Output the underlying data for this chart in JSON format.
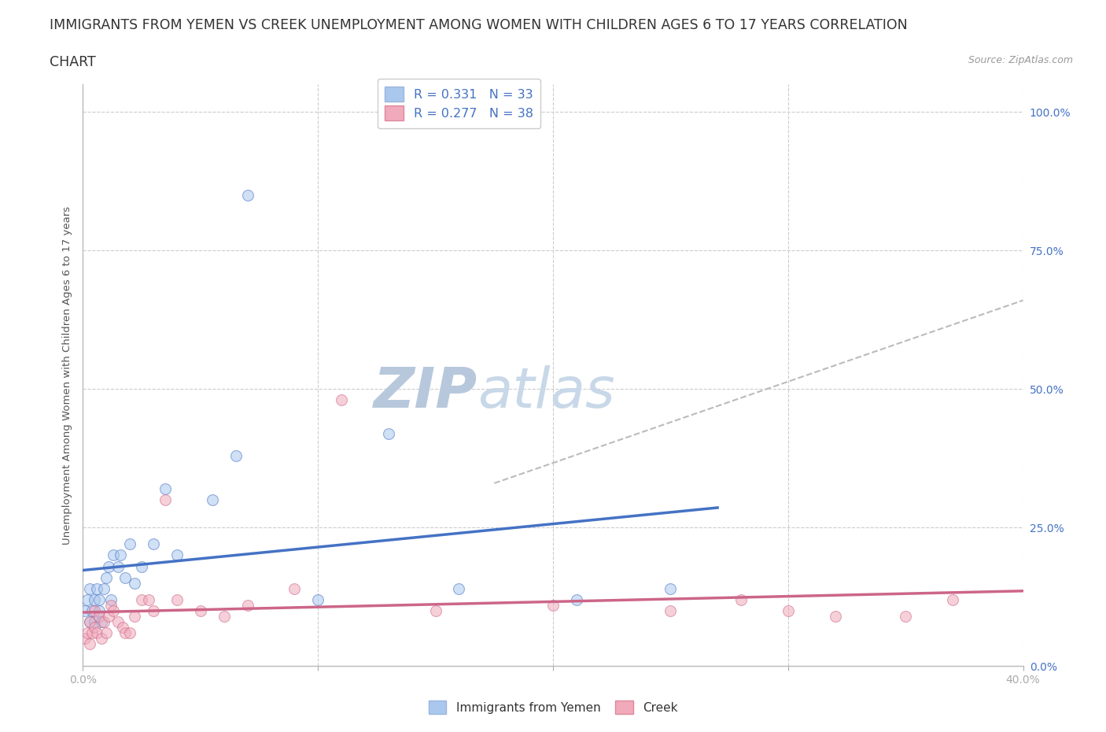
{
  "title_line1": "IMMIGRANTS FROM YEMEN VS CREEK UNEMPLOYMENT AMONG WOMEN WITH CHILDREN AGES 6 TO 17 YEARS CORRELATION",
  "title_line2": "CHART",
  "source_text": "Source: ZipAtlas.com",
  "ylabel": "Unemployment Among Women with Children Ages 6 to 17 years",
  "xlim": [
    0.0,
    0.4
  ],
  "ylim": [
    0.0,
    1.05
  ],
  "legend_r1": "R = 0.331   N = 33",
  "legend_r2": "R = 0.277   N = 38",
  "color_yemen": "#aac8ee",
  "color_creek": "#f0aabb",
  "color_trendline_yemen": "#4472c4",
  "color_trendline_creek": "#cc6688",
  "color_dashed_line": "#bbbbbb",
  "background_color": "#ffffff",
  "watermark_color": "#cdd8e8",
  "grid_color": "#cccccc",
  "yemen_x": [
    0.001,
    0.002,
    0.003,
    0.003,
    0.004,
    0.005,
    0.005,
    0.006,
    0.007,
    0.007,
    0.008,
    0.009,
    0.01,
    0.011,
    0.012,
    0.013,
    0.015,
    0.016,
    0.018,
    0.02,
    0.022,
    0.025,
    0.03,
    0.035,
    0.04,
    0.055,
    0.065,
    0.07,
    0.1,
    0.13,
    0.16,
    0.21,
    0.25
  ],
  "yemen_y": [
    0.1,
    0.12,
    0.08,
    0.14,
    0.1,
    0.12,
    0.08,
    0.14,
    0.12,
    0.1,
    0.08,
    0.14,
    0.16,
    0.18,
    0.12,
    0.2,
    0.18,
    0.2,
    0.16,
    0.22,
    0.15,
    0.18,
    0.22,
    0.32,
    0.2,
    0.3,
    0.38,
    0.85,
    0.12,
    0.42,
    0.14,
    0.12,
    0.14
  ],
  "creek_x": [
    0.001,
    0.002,
    0.003,
    0.003,
    0.004,
    0.005,
    0.005,
    0.006,
    0.007,
    0.008,
    0.009,
    0.01,
    0.011,
    0.012,
    0.013,
    0.015,
    0.017,
    0.018,
    0.02,
    0.022,
    0.025,
    0.028,
    0.03,
    0.035,
    0.04,
    0.05,
    0.06,
    0.07,
    0.09,
    0.11,
    0.15,
    0.2,
    0.25,
    0.28,
    0.3,
    0.32,
    0.35,
    0.37
  ],
  "creek_y": [
    0.05,
    0.06,
    0.04,
    0.08,
    0.06,
    0.07,
    0.1,
    0.06,
    0.09,
    0.05,
    0.08,
    0.06,
    0.09,
    0.11,
    0.1,
    0.08,
    0.07,
    0.06,
    0.06,
    0.09,
    0.12,
    0.12,
    0.1,
    0.3,
    0.12,
    0.1,
    0.09,
    0.11,
    0.14,
    0.48,
    0.1,
    0.11,
    0.1,
    0.12,
    0.1,
    0.09,
    0.09,
    0.12
  ],
  "marker_size": 100,
  "marker_alpha": 0.55,
  "title_fontsize": 12.5,
  "axis_label_fontsize": 9.5,
  "tick_fontsize": 10,
  "legend_fontsize": 11.5,
  "watermark_fontsize": 52,
  "trendline_yemen_x_end": 0.27,
  "trendline_creek_x_end": 0.4,
  "dashed_line_x": [
    0.175,
    0.4
  ],
  "dashed_line_y": [
    0.33,
    0.66
  ]
}
